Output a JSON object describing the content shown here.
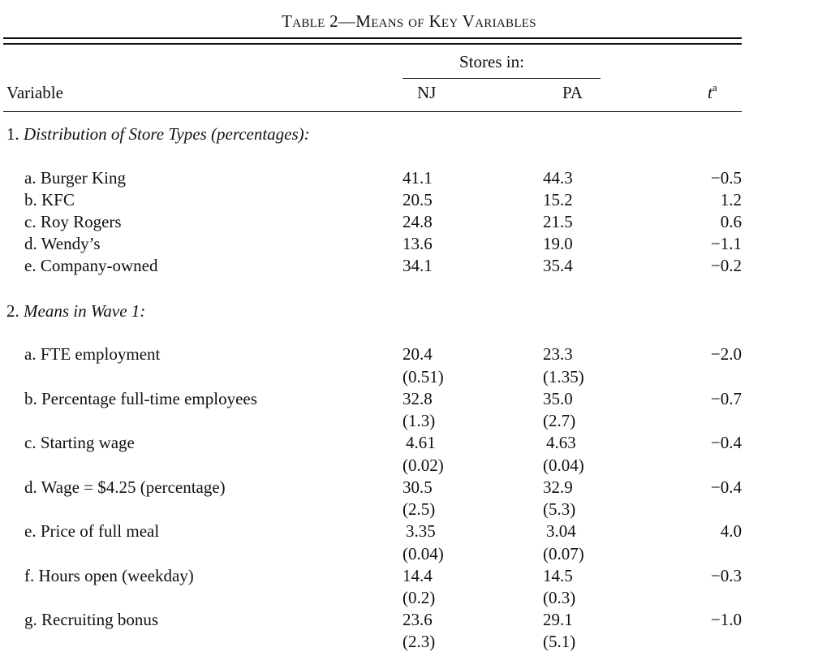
{
  "table": {
    "title": "Table 2—Means of Key Variables",
    "header": {
      "stores_in": "Stores in:",
      "variable": "Variable",
      "nj": "NJ",
      "pa": "PA",
      "t": "t",
      "t_sup": "a"
    },
    "section1": {
      "number": "1.",
      "label": "Distribution of Store Types (percentages):",
      "rows": [
        {
          "label": "a. Burger King",
          "nj": "41.1",
          "pa": "44.3",
          "t": "−0.5"
        },
        {
          "label": "b. KFC",
          "nj": "20.5",
          "pa": "15.2",
          "t": "1.2"
        },
        {
          "label": "c. Roy Rogers",
          "nj": "24.8",
          "pa": "21.5",
          "t": "0.6"
        },
        {
          "label": "d. Wendy’s",
          "nj": "13.6",
          "pa": "19.0",
          "t": "−1.1"
        },
        {
          "label": "e. Company-owned",
          "nj": "34.1",
          "pa": "35.4",
          "t": "−0.2"
        }
      ]
    },
    "section2": {
      "number": "2.",
      "label": "Means in Wave 1:",
      "rows": [
        {
          "label": "a. FTE employment",
          "nj": "20.4",
          "nj_se": "(0.51)",
          "pa": "23.3",
          "pa_se": "(1.35)",
          "t": "−2.0"
        },
        {
          "label": "b. Percentage full-time employees",
          "nj": "32.8",
          "nj_se": "(1.3)",
          "pa": "35.0",
          "pa_se": "(2.7)",
          "t": "−0.7"
        },
        {
          "label": "c. Starting wage",
          "nj": "4.61",
          "nj_se": "(0.02)",
          "pa": "4.63",
          "pa_se": "(0.04)",
          "t": "−0.4"
        },
        {
          "label": "d. Wage = $4.25 (percentage)",
          "nj": "30.5",
          "nj_se": "(2.5)",
          "pa": "32.9",
          "pa_se": "(5.3)",
          "t": "−0.4"
        },
        {
          "label": "e. Price of full meal",
          "nj": "3.35",
          "nj_se": "(0.04)",
          "pa": "3.04",
          "pa_se": "(0.07)",
          "t": "4.0"
        },
        {
          "label": "f. Hours open (weekday)",
          "nj": "14.4",
          "nj_se": "(0.2)",
          "pa": "14.5",
          "pa_se": "(0.3)",
          "t": "−0.3"
        },
        {
          "label": "g. Recruiting bonus",
          "nj": "23.6",
          "nj_se": "(2.3)",
          "pa": "29.1",
          "pa_se": "(5.1)",
          "t": "−1.0"
        }
      ]
    }
  }
}
